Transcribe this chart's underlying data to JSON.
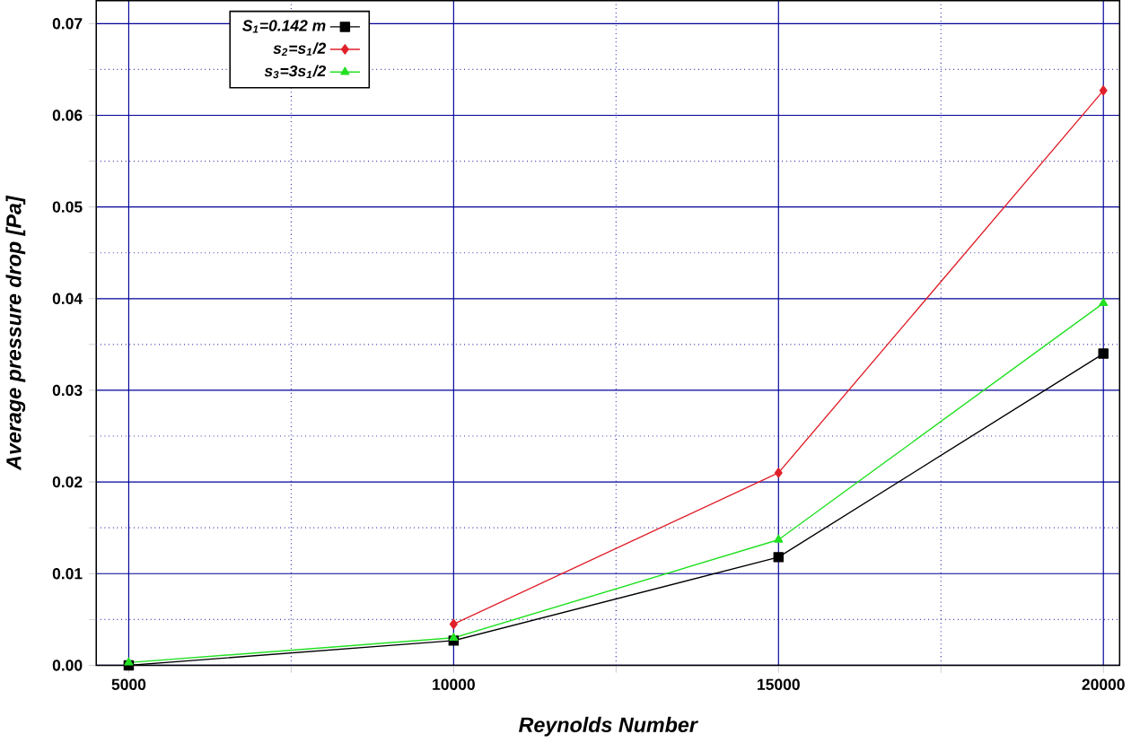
{
  "chart_data": {
    "type": "line",
    "xlabel": "Reynolds Number",
    "ylabel": "Average pressure drop  [Pa]",
    "x": [
      5000,
      10000,
      15000,
      20000
    ],
    "series": [
      {
        "name": "S$_{1}$=0.142 m",
        "color": "#000000",
        "marker": "square",
        "values": [
          0.0,
          0.0027,
          0.0118,
          0.034
        ]
      },
      {
        "name": "s$_{2}$=s$_{1}$/2",
        "color": "#e0202a",
        "marker": "diamond",
        "values": [
          null,
          0.0045,
          0.021,
          0.0627
        ]
      },
      {
        "name": "s$_{3}$=3s$_{1}$/2",
        "color": "#22e022",
        "marker": "triangle",
        "values": [
          0.0003,
          0.003,
          0.0137,
          0.0395
        ]
      }
    ],
    "xlim": [
      4500,
      20250
    ],
    "ylim": [
      0,
      0.0725
    ],
    "xticks": [
      5000,
      {
        "value": 7500,
        "label": null
      },
      10000,
      {
        "value": 12500,
        "label": null
      },
      15000,
      {
        "value": 17500,
        "label": null
      },
      20000
    ],
    "yticks": [
      {
        "value": 0,
        "label": "0.00"
      },
      {
        "value": 0.005,
        "label": null
      },
      {
        "value": 0.01,
        "label": "0.01"
      },
      {
        "value": 0.015,
        "label": null
      },
      {
        "value": 0.02,
        "label": "0.02"
      },
      {
        "value": 0.025,
        "label": null
      },
      {
        "value": 0.03,
        "label": "0.03"
      },
      {
        "value": 0.035,
        "label": null
      },
      {
        "value": 0.04,
        "label": "0.04"
      },
      {
        "value": 0.045,
        "label": null
      },
      {
        "value": 0.05,
        "label": "0.05"
      },
      {
        "value": 0.055,
        "label": null
      },
      {
        "value": 0.06,
        "label": "0.06"
      },
      {
        "value": 0.065,
        "label": null
      },
      {
        "value": 0.07,
        "label": "0.07"
      }
    ],
    "grid": true,
    "legend": "top left",
    "line_style": "solid"
  }
}
